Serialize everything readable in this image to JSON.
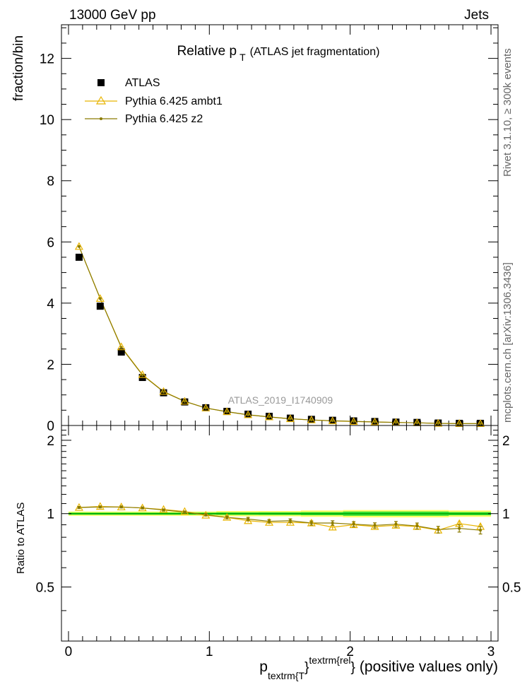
{
  "header": {
    "left": "13000 GeV pp",
    "right": "Jets"
  },
  "side_labels": {
    "rivet": "Rivet 3.1.10, ≥ 300k events",
    "mcplots": "mcplots.cern.ch [arXiv:1306.3436]"
  },
  "colors": {
    "atlas": "#000000",
    "ambt1": "#e8b400",
    "z2": "#8a7a00",
    "band_green": "#33dd33",
    "band_yellow": "#ffff66"
  },
  "chart_data": [
    {
      "type": "scatter",
      "title_main": "Relative p",
      "title_sub": "T",
      "title_rest": "(ATLAS jet fragmentation)",
      "ylabel": "fraction/bin",
      "xlim": [
        -0.05,
        3.05
      ],
      "ylim": [
        0,
        13.1
      ],
      "yticks": [
        0,
        2,
        4,
        6,
        8,
        10,
        12
      ],
      "watermark": "ATLAS_2019_I1740909",
      "x": [
        0.075,
        0.225,
        0.375,
        0.525,
        0.675,
        0.825,
        0.975,
        1.125,
        1.275,
        1.425,
        1.575,
        1.725,
        1.875,
        2.025,
        2.175,
        2.325,
        2.475,
        2.625,
        2.775,
        2.925
      ],
      "series": [
        {
          "name": "ATLAS",
          "values": [
            5.5,
            3.9,
            2.4,
            1.57,
            1.07,
            0.77,
            0.58,
            0.46,
            0.37,
            0.3,
            0.24,
            0.2,
            0.17,
            0.15,
            0.13,
            0.11,
            0.1,
            0.08,
            0.07,
            0.07
          ]
        },
        {
          "name": "Pythia 6.425 ambt1",
          "values": [
            5.85,
            4.15,
            2.57,
            1.66,
            1.11,
            0.79,
            0.57,
            0.45,
            0.35,
            0.28,
            0.22,
            0.18,
            0.15,
            0.13,
            0.115,
            0.1,
            0.088,
            0.07,
            0.065,
            0.062
          ]
        },
        {
          "name": "Pythia 6.425 z2",
          "values": [
            5.85,
            4.15,
            2.55,
            1.65,
            1.1,
            0.79,
            0.57,
            0.45,
            0.35,
            0.28,
            0.22,
            0.18,
            0.155,
            0.135,
            0.115,
            0.1,
            0.088,
            0.068,
            0.06,
            0.06
          ]
        }
      ]
    },
    {
      "type": "line",
      "ylabel": "Ratio to ATLAS",
      "xlabel_main": "p",
      "xlabel_sub": "textrm{T",
      "xlabel_sup": "textrm{rel",
      "xlabel_brace1": "}",
      "xlabel_brace2": "}",
      "xlabel_rest": "(positive values only)",
      "xlim": [
        -0.05,
        3.05
      ],
      "ylim": [
        0.3,
        2.3
      ],
      "xticks": [
        0,
        1,
        2,
        3
      ],
      "yticks": [
        0.5,
        1,
        2
      ],
      "x": [
        0.075,
        0.225,
        0.375,
        0.525,
        0.675,
        0.825,
        0.975,
        1.125,
        1.275,
        1.425,
        1.575,
        1.725,
        1.875,
        2.025,
        2.175,
        2.325,
        2.475,
        2.625,
        2.775,
        2.925
      ],
      "band_yellow_half": [
        0.02,
        0.02,
        0.02,
        0.02,
        0.02,
        0.02,
        0.02,
        0.025,
        0.025,
        0.025,
        0.025,
        0.03,
        0.03,
        0.035,
        0.035,
        0.035,
        0.035,
        0.035,
        0.03,
        0.03
      ],
      "band_green_half": [
        0.01,
        0.01,
        0.01,
        0.01,
        0.01,
        0.01,
        0.01,
        0.012,
        0.012,
        0.013,
        0.013,
        0.015,
        0.015,
        0.02,
        0.02,
        0.02,
        0.02,
        0.02,
        0.015,
        0.015
      ],
      "series": [
        {
          "name": "Pythia 6.425 ambt1",
          "values": [
            1.06,
            1.07,
            1.065,
            1.055,
            1.04,
            1.02,
            0.985,
            0.965,
            0.935,
            0.92,
            0.92,
            0.915,
            0.88,
            0.9,
            0.885,
            0.895,
            0.885,
            0.855,
            0.91,
            0.885
          ],
          "errors": [
            0.01,
            0.01,
            0.01,
            0.01,
            0.01,
            0.01,
            0.012,
            0.013,
            0.015,
            0.015,
            0.017,
            0.018,
            0.02,
            0.022,
            0.022,
            0.024,
            0.025,
            0.027,
            0.03,
            0.03
          ]
        },
        {
          "name": "Pythia 6.425 z2",
          "values": [
            1.06,
            1.065,
            1.065,
            1.055,
            1.035,
            1.015,
            0.99,
            0.965,
            0.95,
            0.93,
            0.935,
            0.915,
            0.915,
            0.905,
            0.895,
            0.905,
            0.89,
            0.86,
            0.87,
            0.855
          ],
          "errors": [
            0.01,
            0.01,
            0.01,
            0.01,
            0.01,
            0.01,
            0.012,
            0.013,
            0.015,
            0.015,
            0.017,
            0.018,
            0.02,
            0.022,
            0.022,
            0.024,
            0.025,
            0.027,
            0.03,
            0.03
          ]
        }
      ]
    }
  ]
}
